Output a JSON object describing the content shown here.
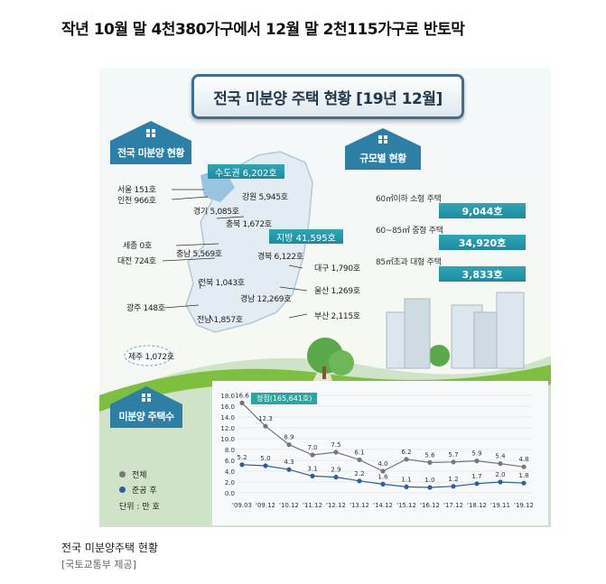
{
  "headline": "작년 10월 말 4천380가구에서 12월 말 2천115가구로 반토막",
  "infographic": {
    "title": "전국 미분양 주택 현황 [19년 12월]",
    "section_region": "전국 미분양 현황",
    "section_size": "규모별 현황",
    "section_trend": "미분양 주택수",
    "capital_area": "수도권 6,202호",
    "non_capital_area": "지방 41,595호",
    "regions": [
      {
        "text": "서울  151호"
      },
      {
        "text": "인천 966호"
      },
      {
        "text": "경기 5,085호"
      },
      {
        "text": "강원 5,945호"
      },
      {
        "text": "충북 1,672호"
      },
      {
        "text": "세종 0호"
      },
      {
        "text": "대전 724호"
      },
      {
        "text": "충남 5,569호"
      },
      {
        "text": "경북 6,122호"
      },
      {
        "text": "대구 1,790호"
      },
      {
        "text": "전북 1,043호"
      },
      {
        "text": "울산 1,269호"
      },
      {
        "text": "광주 148호"
      },
      {
        "text": "경남 12,269호"
      },
      {
        "text": "부산 2,115호"
      },
      {
        "text": "전남 1,857호"
      },
      {
        "text": "제주 1,072호"
      }
    ],
    "sizes": [
      {
        "label": "60㎡이하 소형 주택",
        "value": "9,044호"
      },
      {
        "label": "60~85㎡ 중형 주택",
        "value": "34,920호"
      },
      {
        "label": "85㎡초과 대형 주택",
        "value": "3,833호"
      }
    ],
    "legend": {
      "total": "전체",
      "completed": "준공 후",
      "unit": "단위 : 만 호"
    },
    "peak_label": "정점(165,641호)"
  },
  "caption": {
    "title": "전국 미분양주택 현황",
    "credit": "[국토교통부 제공]"
  },
  "colors": {
    "accent": "#2e7fa6",
    "total_series": "#777777",
    "completed_series": "#2c5f9e"
  },
  "chart_data": {
    "type": "line",
    "x": [
      "'09.03",
      "'09.12",
      "'10.12",
      "'11.12",
      "'12.12",
      "'13.12",
      "'14.12",
      "'15.12",
      "'16.12",
      "'17.12",
      "'18.12",
      "'19.11",
      "'19.12"
    ],
    "x_labels": [
      "'09.03",
      "'09.12",
      "'10.12",
      "'11.12",
      "'12.12",
      "'13.12",
      "'14.12",
      "'15.12",
      "'16.12",
      "'17.12",
      "'18.12",
      "'19.11",
      "'19.12"
    ],
    "series": [
      {
        "name": "전체",
        "values": [
          16.6,
          12.3,
          8.9,
          7.0,
          7.5,
          6.1,
          4.0,
          6.2,
          5.6,
          5.7,
          5.9,
          5.4,
          4.8
        ],
        "labels": [
          "16.6",
          "12.3",
          "8.9",
          "7.0",
          "7.5",
          "6.1",
          "4.0",
          "6.2",
          "5.6",
          "5.7",
          "5.9",
          "5.4",
          "4.8"
        ]
      },
      {
        "name": "준공 후",
        "values": [
          5.2,
          5.0,
          4.3,
          3.1,
          2.9,
          2.2,
          1.6,
          1.1,
          1.0,
          1.2,
          1.7,
          2.0,
          1.8
        ],
        "labels": [
          "5.2",
          "5.0",
          "4.3",
          "3.1",
          "2.9",
          "2.2",
          "1.6",
          "1.1",
          "1.0",
          "1.2",
          "1.7",
          "2.0",
          "1.8"
        ]
      }
    ],
    "y_ticks": [
      "18.0",
      "16.0",
      "14.0",
      "12.0",
      "10.0",
      "8.0",
      "6.0",
      "4.0",
      "2.0",
      "0.0"
    ],
    "ylim": [
      0,
      18
    ],
    "ylabel": "",
    "grid": true,
    "legend_position": "left"
  }
}
